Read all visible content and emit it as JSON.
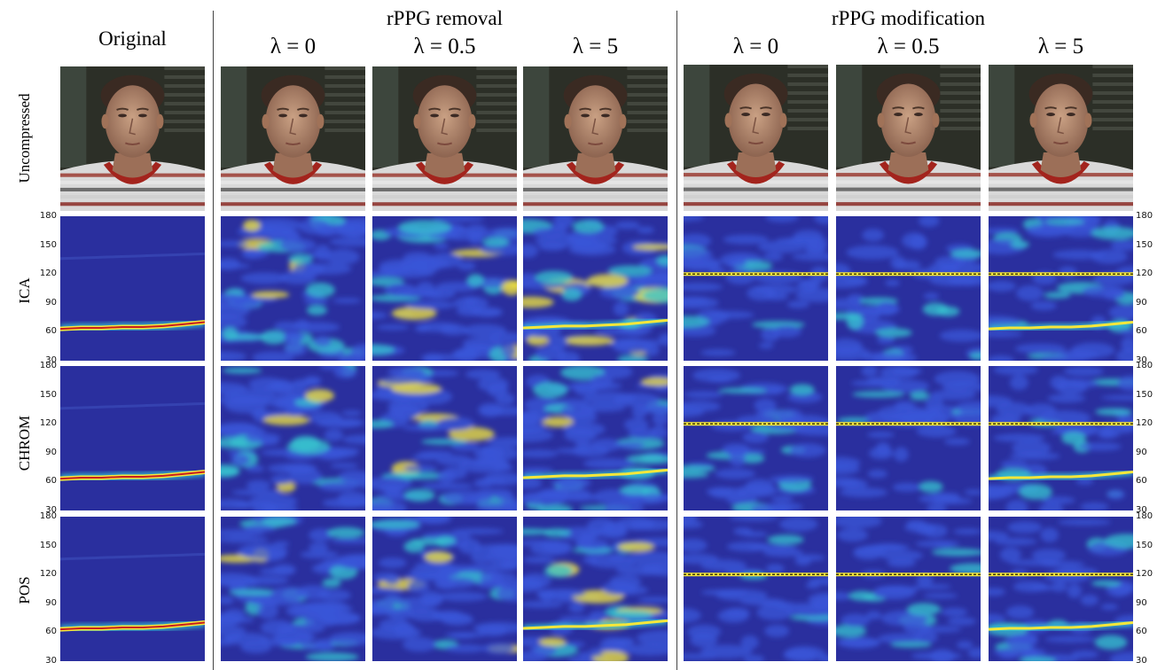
{
  "figure": {
    "headers": {
      "original": "Original",
      "removal": "rPPG removal",
      "modification": "rPPG modification"
    },
    "lambda_labels": [
      "λ = 0",
      "λ = 0.5",
      "λ = 5",
      "λ = 0",
      "λ = 0.5",
      "λ = 5"
    ],
    "row_labels": [
      "Uncompressed",
      "ICA",
      "CHROM",
      "POS"
    ],
    "y_ticks": [
      "180",
      "150",
      "120",
      "90",
      "60",
      "30"
    ]
  },
  "colors": {
    "spectrogram_bg": "#2a2f9e",
    "spectrogram_low": "#3a56d8",
    "spectrogram_mid": "#37c6d0",
    "spectrogram_high": "#f6e73a",
    "spectrogram_peak": "#c81e1e",
    "face_bg": "#2c2f27",
    "shirt_red": "#a3241d"
  },
  "heatmaps": {
    "original_hr_bpm": [
      63,
      64,
      64,
      65,
      65,
      66,
      68,
      70
    ],
    "removal_lambda5_hr_bpm": [
      64,
      65,
      66,
      66,
      67,
      68,
      70,
      72
    ],
    "modification_target_bpm": 120
  }
}
